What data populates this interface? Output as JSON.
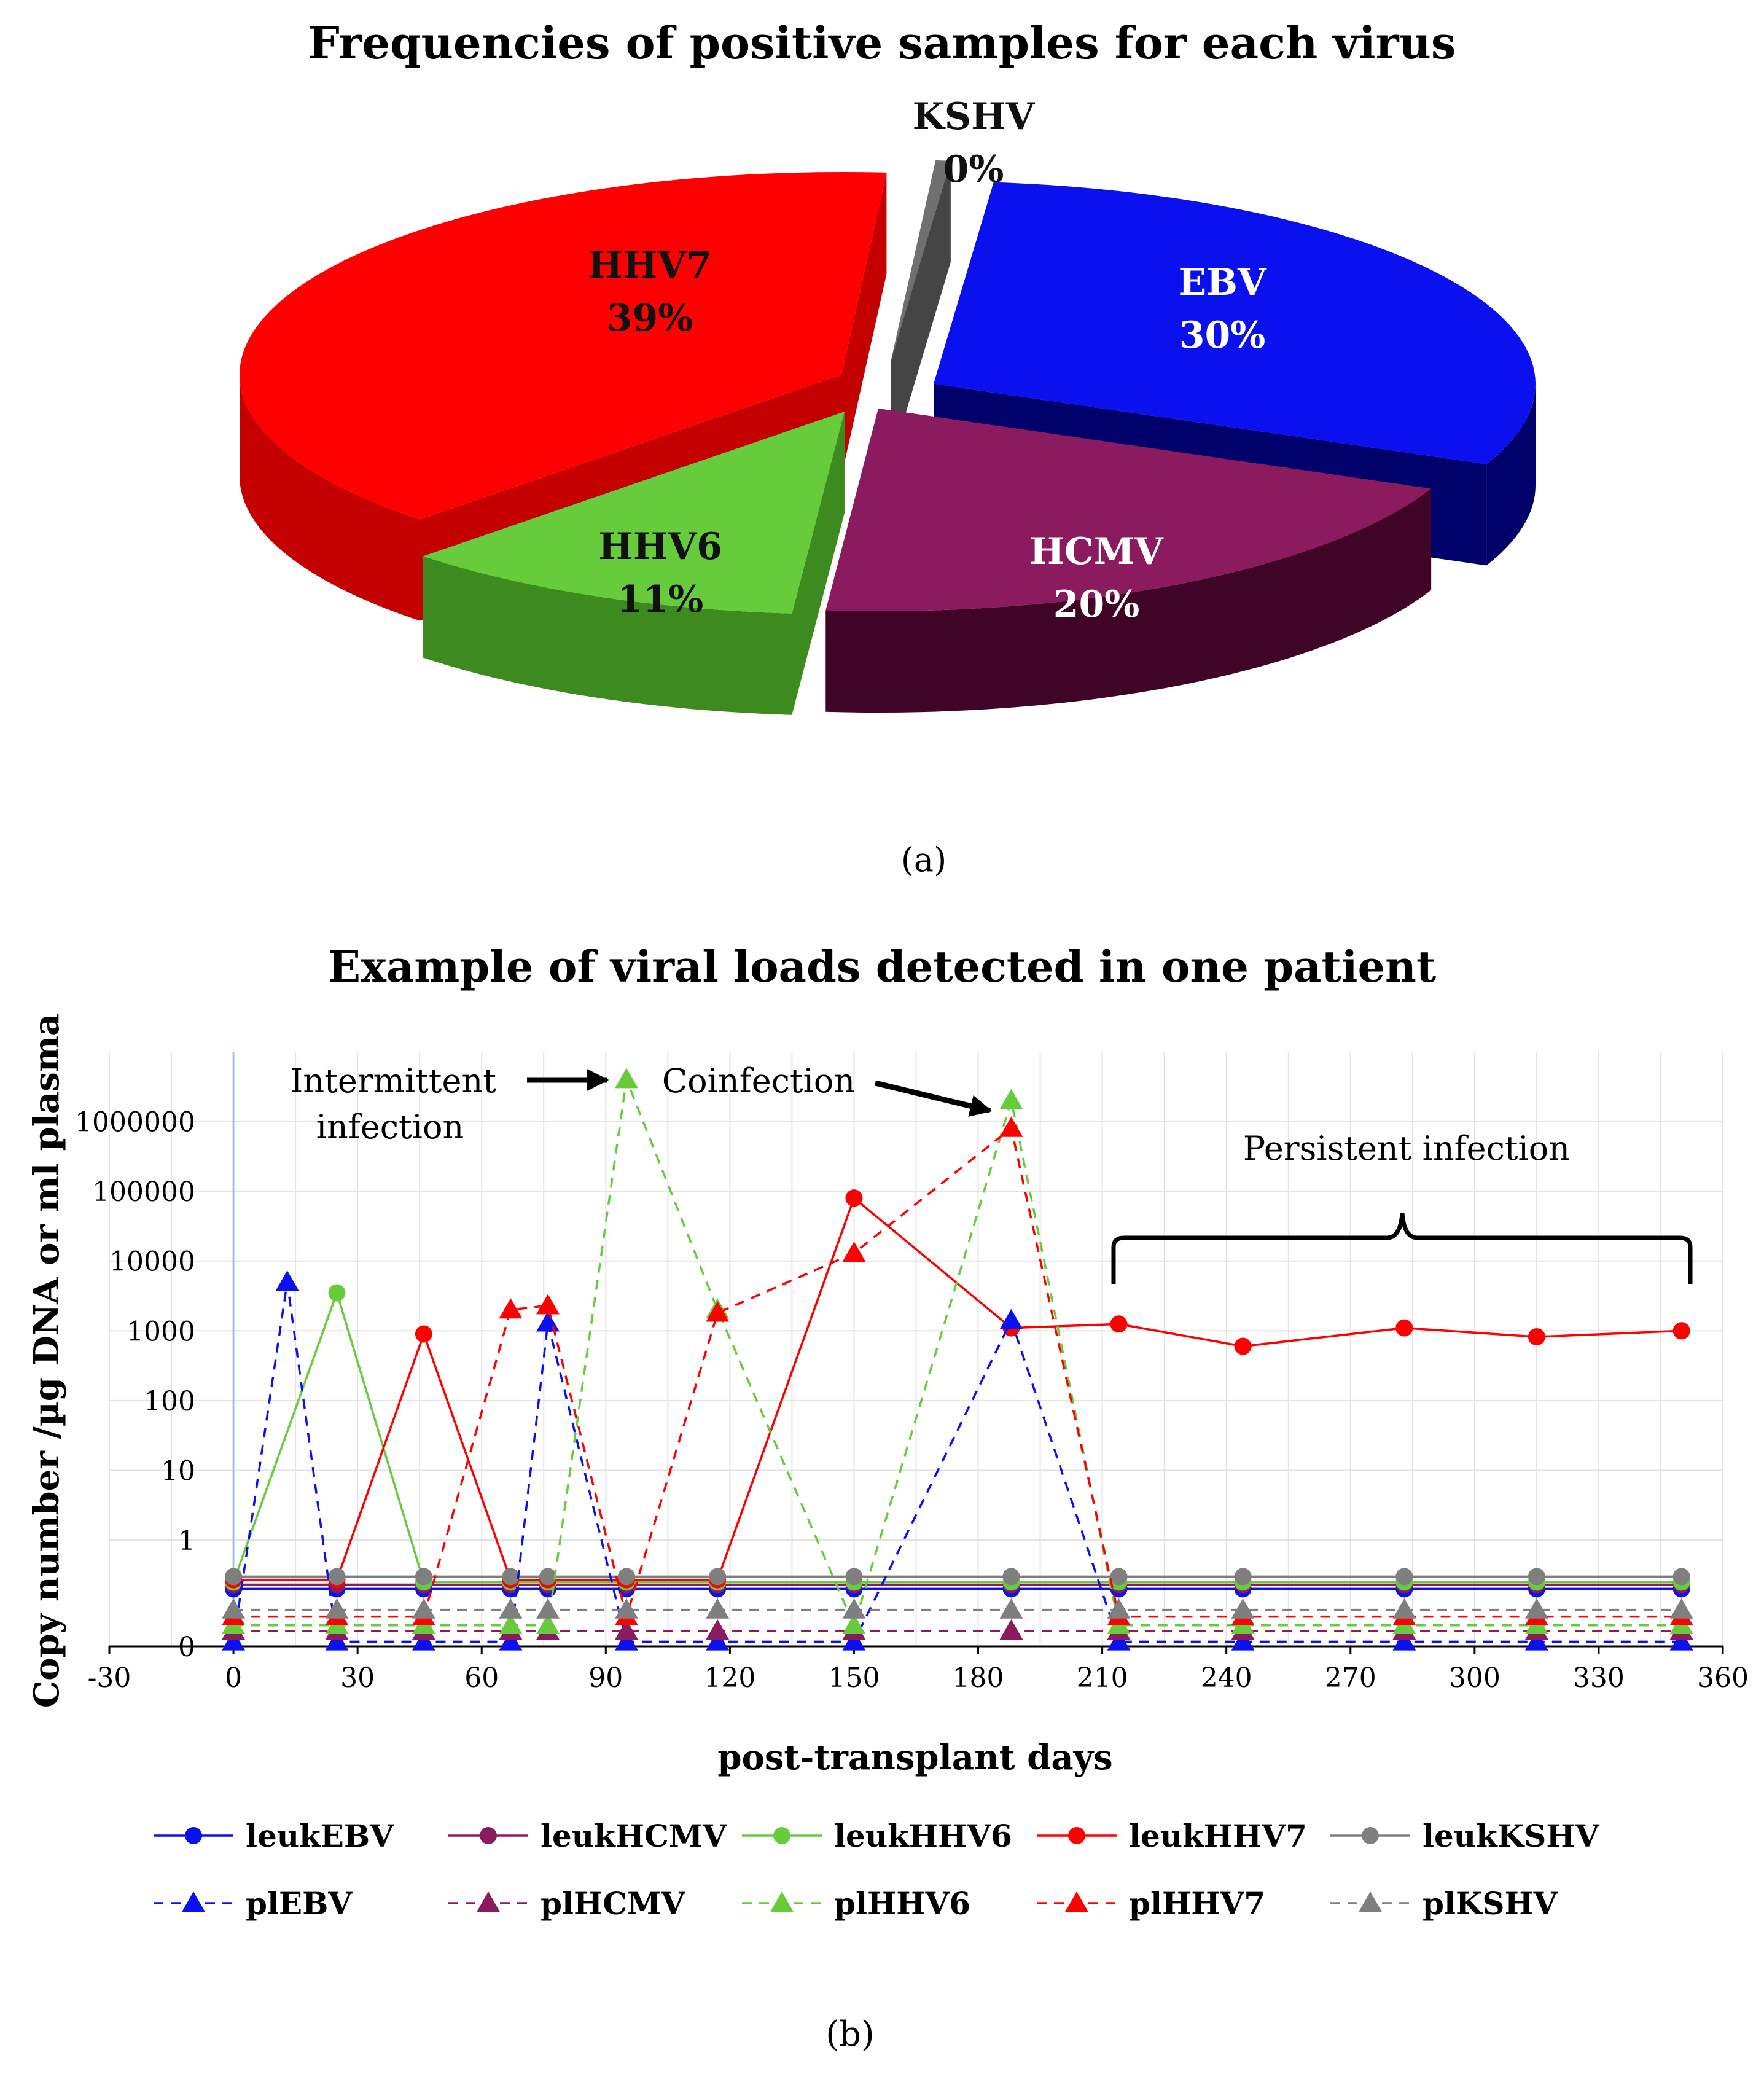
{
  "chart_data": [
    {
      "type": "pie",
      "panel_label": "(a)",
      "title": "Frequencies of positive samples for each virus",
      "slices": [
        {
          "name": "EBV",
          "value": 30,
          "label": "30%",
          "color": "#0a10ee",
          "side_color": "#00006b",
          "text_color": "#ffffff"
        },
        {
          "name": "HCMV",
          "value": 20,
          "label": "20%",
          "color": "#8c1a5f",
          "side_color": "#3f0426",
          "text_color": "#ffffff"
        },
        {
          "name": "HHV6",
          "value": 11,
          "label": "11%",
          "color": "#66cc3c",
          "side_color": "#3d8a1f",
          "text_color": "#111111"
        },
        {
          "name": "HHV7",
          "value": 39,
          "label": "39%",
          "color": "#ff0000",
          "side_color": "#c40000",
          "text_color": "#111111"
        },
        {
          "name": "KSHV",
          "value": 0.4,
          "label": "0%",
          "color": "#707070",
          "side_color": "#454545",
          "text_color": "#111111"
        }
      ]
    },
    {
      "type": "line",
      "panel_label": "(b)",
      "title": "Example of viral loads detected in one patient",
      "xlabel": "post-transplant days",
      "ylabel": "Copy number /µg DNA or ml plasma",
      "xlim": [
        -30,
        360
      ],
      "xticks": [
        -30,
        0,
        30,
        60,
        90,
        120,
        150,
        180,
        210,
        240,
        270,
        300,
        330,
        360
      ],
      "ylim": [
        0.03,
        10000000
      ],
      "yscale": "log",
      "yticks": [
        {
          "value": 1000000,
          "label": "1000000"
        },
        {
          "value": 100000,
          "label": "100000"
        },
        {
          "value": 10000,
          "label": "10000"
        },
        {
          "value": 1000,
          "label": "1000"
        },
        {
          "value": 100,
          "label": "100"
        },
        {
          "value": 10,
          "label": "10"
        },
        {
          "value": 1,
          "label": "1"
        },
        {
          "value": 0.03,
          "label": "0"
        }
      ],
      "grid": true,
      "legend_position": "bottom",
      "series": [
        {
          "name": "leukEBV",
          "color": "#0a10ee",
          "dashed": false,
          "marker": "circle",
          "x": [
            0,
            25,
            46,
            67,
            76,
            95,
            117,
            150,
            188,
            214,
            244,
            283,
            315,
            350
          ],
          "y": [
            0.2,
            0.2,
            0.2,
            0.2,
            0.2,
            0.2,
            0.2,
            0.2,
            0.2,
            0.2,
            0.2,
            0.2,
            0.2,
            0.2
          ]
        },
        {
          "name": "leukHCMV",
          "color": "#8c1a5f",
          "dashed": false,
          "marker": "circle",
          "x": [
            0,
            25,
            46,
            67,
            76,
            95,
            117,
            150,
            188,
            214,
            244,
            283,
            315,
            350
          ],
          "y": [
            0.23,
            0.23,
            0.23,
            0.23,
            0.23,
            0.23,
            0.23,
            0.23,
            0.23,
            0.23,
            0.23,
            0.23,
            0.23,
            0.23
          ]
        },
        {
          "name": "leukHHV6",
          "color": "#66cc3c",
          "dashed": false,
          "marker": "circle",
          "x": [
            0,
            25,
            46,
            67,
            76,
            95,
            117,
            150,
            188,
            214,
            244,
            283,
            315,
            350
          ],
          "y": [
            0.25,
            3500,
            0.25,
            0.25,
            0.25,
            0.25,
            0.25,
            0.25,
            0.25,
            0.25,
            0.25,
            0.25,
            0.25,
            0.25
          ]
        },
        {
          "name": "leukHHV7",
          "color": "#ff0000",
          "dashed": false,
          "marker": "circle",
          "x": [
            0,
            25,
            46,
            67,
            76,
            95,
            117,
            150,
            188,
            214,
            244,
            283,
            315,
            350
          ],
          "y": [
            0.27,
            0.27,
            900,
            0.27,
            0.27,
            0.27,
            0.27,
            80000,
            1100,
            1250,
            600,
            1100,
            820,
            1000
          ]
        },
        {
          "name": "leukKSHV",
          "color": "#7f7f7f",
          "dashed": false,
          "marker": "circle",
          "x": [
            0,
            25,
            46,
            67,
            76,
            95,
            117,
            150,
            188,
            214,
            244,
            283,
            315,
            350
          ],
          "y": [
            0.3,
            0.3,
            0.3,
            0.3,
            0.3,
            0.3,
            0.3,
            0.3,
            0.3,
            0.3,
            0.3,
            0.3,
            0.3,
            0.3
          ]
        },
        {
          "name": "plEBV",
          "color": "#0a10ee",
          "dashed": true,
          "marker": "triangle",
          "x": [
            0,
            13,
            25,
            46,
            67,
            76,
            95,
            117,
            150,
            188,
            214,
            244,
            283,
            315,
            350
          ],
          "y": [
            0.035,
            5000,
            0.035,
            0.035,
            0.035,
            1300,
            0.035,
            0.035,
            0.035,
            1400,
            0.035,
            0.035,
            0.035,
            0.035,
            0.035
          ]
        },
        {
          "name": "plHCMV",
          "color": "#8c1a5f",
          "dashed": true,
          "marker": "triangle",
          "x": [
            0,
            25,
            46,
            67,
            76,
            95,
            117,
            150,
            188,
            214,
            244,
            283,
            315,
            350
          ],
          "y": [
            0.05,
            0.05,
            0.05,
            0.05,
            0.05,
            0.05,
            0.05,
            0.05,
            0.05,
            0.05,
            0.05,
            0.05,
            0.05,
            0.05
          ]
        },
        {
          "name": "plHHV6",
          "color": "#66cc3c",
          "dashed": true,
          "marker": "triangle",
          "x": [
            0,
            25,
            46,
            67,
            76,
            95,
            117,
            150,
            188,
            214,
            244,
            283,
            315,
            350
          ],
          "y": [
            0.06,
            0.06,
            0.06,
            0.06,
            0.06,
            4000000,
            2000,
            0.06,
            2000000,
            0.06,
            0.06,
            0.06,
            0.06,
            0.06
          ]
        },
        {
          "name": "plHHV7",
          "color": "#ff0000",
          "dashed": true,
          "marker": "triangle",
          "x": [
            0,
            25,
            46,
            67,
            76,
            95,
            117,
            150,
            188,
            214,
            244,
            283,
            315,
            350
          ],
          "y": [
            0.08,
            0.08,
            0.08,
            2000,
            2300,
            0.08,
            1800,
            13000,
            800000,
            0.08,
            0.08,
            0.08,
            0.08,
            0.08
          ]
        },
        {
          "name": "plKSHV",
          "color": "#7f7f7f",
          "dashed": true,
          "marker": "triangle",
          "x": [
            0,
            25,
            46,
            67,
            76,
            95,
            117,
            150,
            188,
            214,
            244,
            283,
            315,
            350
          ],
          "y": [
            0.1,
            0.1,
            0.1,
            0.1,
            0.1,
            0.1,
            0.1,
            0.1,
            0.1,
            0.1,
            0.1,
            0.1,
            0.1,
            0.1
          ]
        }
      ],
      "annotations": [
        {
          "text": "Intermittent",
          "type": "label"
        },
        {
          "text": "infection",
          "type": "label"
        },
        {
          "text": "Coinfection",
          "type": "label"
        },
        {
          "text": "Persistent infection",
          "type": "label"
        }
      ]
    }
  ]
}
